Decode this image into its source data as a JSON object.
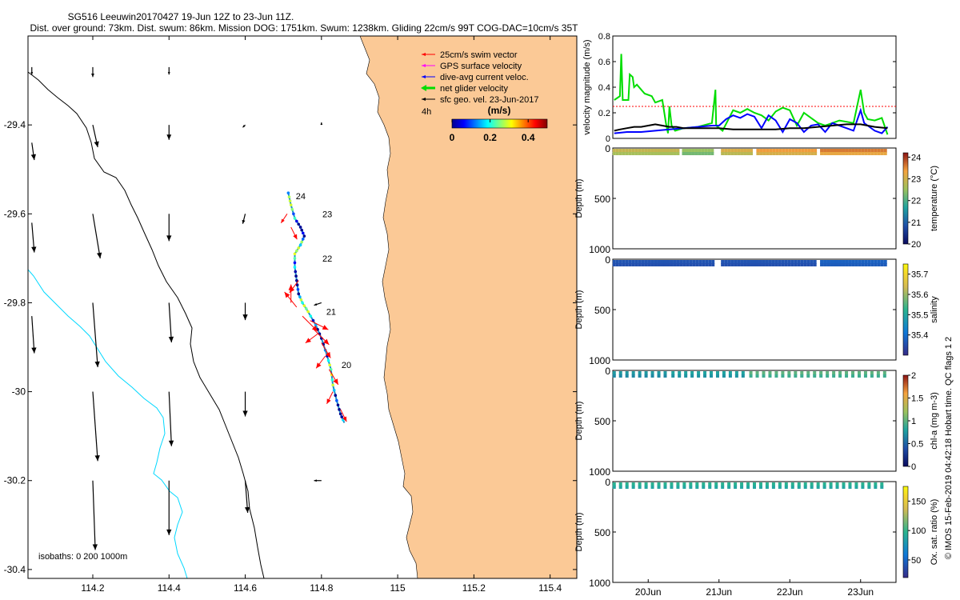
{
  "chart_data": {
    "type": "scatter",
    "title": "SG516 Leeuwin20170427 19-Jun 12Z to 23-Jun 11Z.",
    "subtitle": "Dist. over ground: 73km. Dist. swum: 86km. Mission DOG: 1751km. Swum: 1238km. Gliding 22cm/s 99T COG-DAC=10cm/s 35T",
    "side_label": "© IMOS 15-Feb-2019 04:42:18 Hobart time. QC flags 1  2",
    "colors": {
      "land": "#fbc996",
      "swim": "#ff0000",
      "gps": "#ff00ff",
      "dac": "#0000ff",
      "net": "#00dd00",
      "sfc": "#000000",
      "isobath_shallow": "#00d8ff",
      "isobath_deep": "#000000"
    },
    "map": {
      "xlim": [
        114.03,
        115.47
      ],
      "ylim": [
        -30.42,
        -29.2
      ],
      "xticks": [
        114.2,
        114.4,
        114.6,
        114.8,
        115,
        115.2,
        115.4
      ],
      "xtick_labels": [
        "114.2",
        "114.4",
        "114.6",
        "114.8",
        "115",
        "115.2",
        "115.4"
      ],
      "yticks": [
        -29.4,
        -29.6,
        -29.8,
        -30,
        -30.2,
        -30.4
      ],
      "ytick_labels": [
        "-29.4",
        "-29.6",
        "-29.8",
        "-30",
        "-30.2",
        "-30.4"
      ],
      "legend": [
        {
          "label": "25cm/s swim vector",
          "color": "#ff0000",
          "kind": "arrow"
        },
        {
          "label": "GPS surface velocity",
          "color": "#ff00ff",
          "kind": "arrow"
        },
        {
          "label": "dive-avg current veloc.",
          "color": "#0000ff",
          "kind": "arrow"
        },
        {
          "label": "net glider velocity",
          "color": "#00dd00",
          "kind": "thick-arrow"
        },
        {
          "label": "sfc geo. vel. 23-Jun-2017",
          "color": "#000000",
          "kind": "arrow"
        }
      ],
      "time_label": "4h",
      "colorbar": {
        "label": "(m/s)",
        "ticks": [
          0,
          0.2,
          0.4
        ],
        "range": [
          0,
          0.5
        ]
      },
      "isobaths_label": "isobaths: 0   200  1000m",
      "day_labels": [
        {
          "text": "24",
          "lon": 114.72,
          "lat": -29.56
        },
        {
          "text": "23",
          "lon": 114.79,
          "lat": -29.6
        },
        {
          "text": "22",
          "lon": 114.79,
          "lat": -29.7
        },
        {
          "text": "21",
          "lon": 114.8,
          "lat": -29.82
        },
        {
          "text": "20",
          "lon": 114.84,
          "lat": -29.94
        }
      ],
      "track": [
        [
          114.713,
          -29.553
        ],
        [
          114.72,
          -29.58
        ],
        [
          114.73,
          -29.61
        ],
        [
          114.745,
          -29.63
        ],
        [
          114.755,
          -29.65
        ],
        [
          114.745,
          -29.67
        ],
        [
          114.73,
          -29.69
        ],
        [
          114.73,
          -29.72
        ],
        [
          114.735,
          -29.75
        ],
        [
          114.74,
          -29.78
        ],
        [
          114.75,
          -29.8
        ],
        [
          114.765,
          -29.82
        ],
        [
          114.785,
          -29.85
        ],
        [
          114.8,
          -29.88
        ],
        [
          114.815,
          -29.92
        ],
        [
          114.825,
          -29.95
        ],
        [
          114.83,
          -29.985
        ],
        [
          114.84,
          -30.02
        ],
        [
          114.85,
          -30.05
        ],
        [
          114.86,
          -30.07
        ]
      ],
      "geo_vectors": [
        {
          "lon": 114.04,
          "lat": -29.27,
          "u": 0.0,
          "v": -0.03
        },
        {
          "lon": 114.2,
          "lat": -29.27,
          "u": 0.0,
          "v": -0.04
        },
        {
          "lon": 114.4,
          "lat": -29.27,
          "u": 0.0,
          "v": -0.03
        },
        {
          "lon": 114.04,
          "lat": -29.44,
          "u": 0.01,
          "v": -0.07
        },
        {
          "lon": 114.2,
          "lat": -29.4,
          "u": 0.02,
          "v": -0.09
        },
        {
          "lon": 114.4,
          "lat": -29.4,
          "u": 0.0,
          "v": -0.06
        },
        {
          "lon": 114.6,
          "lat": -29.4,
          "u": -0.01,
          "v": -0.01
        },
        {
          "lon": 114.8,
          "lat": -29.4,
          "u": 0.0,
          "v": 0.01
        },
        {
          "lon": 114.04,
          "lat": -29.62,
          "u": 0.01,
          "v": -0.12
        },
        {
          "lon": 114.2,
          "lat": -29.6,
          "u": 0.03,
          "v": -0.18
        },
        {
          "lon": 114.4,
          "lat": -29.6,
          "u": 0.0,
          "v": -0.11
        },
        {
          "lon": 114.6,
          "lat": -29.6,
          "u": -0.01,
          "v": -0.04
        },
        {
          "lon": 114.04,
          "lat": -29.83,
          "u": 0.01,
          "v": -0.15
        },
        {
          "lon": 114.2,
          "lat": -29.8,
          "u": 0.02,
          "v": -0.26
        },
        {
          "lon": 114.4,
          "lat": -29.8,
          "u": 0.01,
          "v": -0.16
        },
        {
          "lon": 114.6,
          "lat": -29.8,
          "u": 0.0,
          "v": -0.07
        },
        {
          "lon": 114.8,
          "lat": -29.8,
          "u": -0.03,
          "v": -0.01
        },
        {
          "lon": 114.2,
          "lat": -30.0,
          "u": 0.02,
          "v": -0.28
        },
        {
          "lon": 114.4,
          "lat": -30.0,
          "u": 0.01,
          "v": -0.22
        },
        {
          "lon": 114.6,
          "lat": -30.0,
          "u": 0.0,
          "v": -0.1
        },
        {
          "lon": 114.2,
          "lat": -30.2,
          "u": 0.01,
          "v": -0.28
        },
        {
          "lon": 114.4,
          "lat": -30.2,
          "u": 0.0,
          "v": -0.22
        },
        {
          "lon": 114.6,
          "lat": -30.2,
          "u": 0.01,
          "v": -0.13
        },
        {
          "lon": 114.8,
          "lat": -30.2,
          "u": -0.03,
          "v": 0.0
        }
      ],
      "swim_vectors": [
        {
          "lon": 114.72,
          "lat": -29.8,
          "u": 0.0,
          "v": 0.06
        },
        {
          "lon": 114.735,
          "lat": -29.81,
          "u": -0.04,
          "v": 0.05
        },
        {
          "lon": 114.75,
          "lat": -29.83,
          "u": 0.05,
          "v": -0.05
        },
        {
          "lon": 114.77,
          "lat": -29.84,
          "u": 0.06,
          "v": -0.03
        },
        {
          "lon": 114.78,
          "lat": -29.86,
          "u": 0.05,
          "v": -0.05
        },
        {
          "lon": 114.79,
          "lat": -29.87,
          "u": -0.04,
          "v": -0.03
        },
        {
          "lon": 114.8,
          "lat": -29.89,
          "u": 0.03,
          "v": -0.05
        },
        {
          "lon": 114.81,
          "lat": -29.92,
          "u": -0.03,
          "v": -0.04
        },
        {
          "lon": 114.82,
          "lat": -29.95,
          "u": 0.03,
          "v": -0.05
        },
        {
          "lon": 114.83,
          "lat": -30.0,
          "u": -0.02,
          "v": -0.04
        },
        {
          "lon": 114.85,
          "lat": -30.04,
          "u": 0.02,
          "v": -0.04
        },
        {
          "lon": 114.74,
          "lat": -29.75,
          "u": -0.03,
          "v": -0.04
        },
        {
          "lon": 114.71,
          "lat": -29.6,
          "u": -0.02,
          "v": -0.03
        },
        {
          "lon": 114.72,
          "lat": -29.63,
          "u": 0.02,
          "v": -0.04
        }
      ]
    },
    "velocity": {
      "ylabel": "velocity magnitude (m/s)",
      "ylim": [
        0,
        0.8
      ],
      "yticks": [
        0,
        0.2,
        0.4,
        0.6,
        0.8
      ],
      "ytick_labels": [
        "0",
        "0.2",
        "0.4",
        "0.6",
        "0.8"
      ],
      "xlim": [
        19.5,
        23.5
      ],
      "threshold": 0.25,
      "series": [
        {
          "name": "net glider velocity",
          "color": "#00dd00",
          "x": [
            19.52,
            19.6,
            19.62,
            19.64,
            19.72,
            19.74,
            19.78,
            19.8,
            19.84,
            19.95,
            20.05,
            20.1,
            20.2,
            20.25,
            20.28,
            20.3,
            20.33,
            20.38,
            20.5,
            20.7,
            20.9,
            20.95,
            20.96,
            21.05,
            21.2,
            21.3,
            21.4,
            21.5,
            21.6,
            21.7,
            21.8,
            21.9,
            22.0,
            22.1,
            22.2,
            22.3,
            22.4,
            22.5,
            22.6,
            22.7,
            22.8,
            22.9,
            23.0,
            23.05,
            23.1,
            23.2,
            23.3,
            23.38
          ],
          "y": [
            0.3,
            0.33,
            0.66,
            0.3,
            0.3,
            0.5,
            0.48,
            0.4,
            0.42,
            0.35,
            0.33,
            0.28,
            0.3,
            0.12,
            0.04,
            0.25,
            0.1,
            0.06,
            0.08,
            0.09,
            0.12,
            0.38,
            0.1,
            0.06,
            0.22,
            0.2,
            0.23,
            0.2,
            0.18,
            0.14,
            0.21,
            0.24,
            0.22,
            0.1,
            0.2,
            0.16,
            0.12,
            0.1,
            0.12,
            0.14,
            0.13,
            0.12,
            0.38,
            0.2,
            0.15,
            0.14,
            0.16,
            0.03
          ]
        },
        {
          "name": "dive-avg current veloc.",
          "color": "#0000ff",
          "x": [
            19.52,
            19.7,
            19.9,
            20.1,
            20.3,
            20.5,
            20.7,
            20.9,
            21.0,
            21.1,
            21.2,
            21.3,
            21.4,
            21.5,
            21.6,
            21.7,
            21.8,
            21.9,
            22.0,
            22.1,
            22.2,
            22.3,
            22.4,
            22.5,
            22.6,
            22.7,
            22.8,
            22.9,
            23.0,
            23.05,
            23.1,
            23.2,
            23.3,
            23.38
          ],
          "y": [
            0.04,
            0.05,
            0.05,
            0.06,
            0.07,
            0.08,
            0.09,
            0.1,
            0.1,
            0.15,
            0.18,
            0.16,
            0.19,
            0.17,
            0.08,
            0.18,
            0.14,
            0.05,
            0.15,
            0.12,
            0.05,
            0.1,
            0.11,
            0.05,
            0.12,
            0.1,
            0.08,
            0.06,
            0.22,
            0.12,
            0.1,
            0.06,
            0.04,
            0.09
          ]
        },
        {
          "name": "sfc geo. vel.",
          "color": "#000000",
          "x": [
            19.52,
            19.6,
            19.7,
            19.8,
            19.9,
            20.0,
            20.1,
            20.2,
            20.3,
            20.4,
            20.5,
            20.6,
            20.7,
            20.8,
            20.9,
            21.0,
            21.2,
            21.4,
            21.6,
            21.8,
            22.0,
            22.2,
            22.4,
            22.6,
            22.8,
            23.0,
            23.2,
            23.38
          ],
          "y": [
            0.06,
            0.07,
            0.08,
            0.09,
            0.09,
            0.1,
            0.11,
            0.1,
            0.09,
            0.09,
            0.08,
            0.08,
            0.08,
            0.08,
            0.08,
            0.08,
            0.07,
            0.07,
            0.07,
            0.07,
            0.08,
            0.08,
            0.09,
            0.1,
            0.11,
            0.11,
            0.09,
            0.08
          ]
        }
      ]
    },
    "profiles": [
      {
        "name": "temperature",
        "clabel": "temperature (°C)",
        "ylabel": "Depth (m)",
        "yticks": [
          0,
          500,
          1000
        ],
        "ytick_labels": [
          "0",
          "500",
          "1000"
        ],
        "cticks": [
          "24",
          "23",
          "22",
          "21",
          "20"
        ],
        "crange": [
          20,
          24.2
        ],
        "segments": [
          [
            19.52,
            20.45,
            22.9
          ],
          [
            20.5,
            20.95,
            22.5
          ],
          [
            21.05,
            21.5,
            23.1
          ],
          [
            21.55,
            22.4,
            23.4
          ],
          [
            22.45,
            23.38,
            23.6
          ]
        ]
      },
      {
        "name": "salinity",
        "clabel": "salinity",
        "ylabel": "Depth (m)",
        "yticks": [
          0,
          500,
          1000
        ],
        "ytick_labels": [
          "0",
          "500",
          "1000"
        ],
        "cticks": [
          "35.7",
          "35.6",
          "35.5",
          "35.4"
        ],
        "crange": [
          35.3,
          35.75
        ],
        "segments": [
          [
            19.52,
            20.95,
            35.36
          ],
          [
            21.05,
            22.4,
            35.36
          ],
          [
            22.45,
            23.38,
            35.38
          ]
        ]
      },
      {
        "name": "chl-a",
        "clabel": "chl-a (mg m-3)",
        "ylabel": "Depth (m)",
        "yticks": [
          0,
          500,
          1000
        ],
        "ytick_labels": [
          "0",
          "500",
          "1000"
        ],
        "cticks": [
          "2",
          "1.5",
          "1",
          "0.5",
          "0"
        ],
        "crange": [
          0,
          2
        ],
        "segments": [
          [
            19.52,
            20.3,
            0.75
          ],
          [
            20.35,
            21.4,
            0.8
          ],
          [
            21.45,
            23.38,
            1.0
          ]
        ]
      },
      {
        "name": "oxygen",
        "clabel": "Ox. sat. ratio (%)",
        "ylabel": "Depth (m)",
        "yticks": [
          0,
          500,
          1000
        ],
        "ytick_labels": [
          "0",
          "500",
          "1000"
        ],
        "cticks": [
          "150",
          "100",
          "50"
        ],
        "crange": [
          20,
          175
        ],
        "segments": [
          [
            19.52,
            23.38,
            96
          ]
        ]
      }
    ],
    "time_axis": {
      "ticks": [
        20,
        21,
        22,
        23
      ],
      "tick_labels": [
        "20Jun",
        "21Jun",
        "22Jun",
        "23Jun"
      ]
    }
  }
}
